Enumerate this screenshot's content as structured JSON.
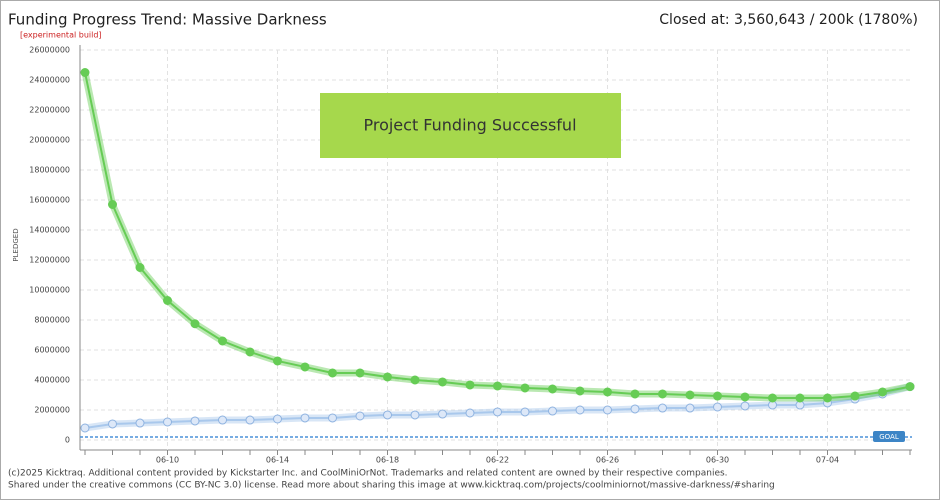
{
  "chart_data": {
    "type": "line",
    "title": "Funding Progress Trend: Massive Darkness",
    "subtitle": "[experimental build]",
    "closed_at": "Closed at:  3,560,643 / 200k (1780%)",
    "y_label": "PLEDGED",
    "banner": "Project Funding Successful",
    "goal_label": "GOAL",
    "goal": 200000,
    "footer": [
      "(c)2025 Kicktraq. Additional content provided by Kickstarter Inc. and CoolMiniOrNot. Trademarks and related content are owned by their respective companies.",
      "Shared under the creative commons (CC BY-NC 3.0) license. Read more about sharing this image at www.kicktraq.com/projects/coolminiornot/massive-darkness/#sharing"
    ],
    "categories": [
      null,
      null,
      null,
      "06-10",
      null,
      null,
      null,
      "06-14",
      null,
      null,
      null,
      "06-18",
      null,
      null,
      null,
      "06-22",
      null,
      null,
      null,
      "06-26",
      null,
      null,
      null,
      "06-30",
      null,
      null,
      null,
      "07-04",
      null,
      null,
      null
    ],
    "series": [
      {
        "color": "#66cc55",
        "values": [
          24500000,
          15700000,
          11500000,
          9300000,
          7750000,
          6600000,
          5870000,
          5270000,
          4870000,
          4470000,
          4470000,
          4200000,
          4000000,
          3870000,
          3670000,
          3600000,
          3470000,
          3400000,
          3270000,
          3200000,
          3070000,
          3070000,
          3000000,
          2930000,
          2870000,
          2800000,
          2800000,
          2800000,
          2930000,
          3200000,
          3560643
        ]
      },
      {
        "color": "#a9c8ec",
        "values": [
          800000,
          1070000,
          1130000,
          1200000,
          1270000,
          1330000,
          1330000,
          1400000,
          1470000,
          1470000,
          1600000,
          1670000,
          1670000,
          1730000,
          1800000,
          1870000,
          1870000,
          1930000,
          2000000,
          2000000,
          2070000,
          2130000,
          2130000,
          2200000,
          2270000,
          2330000,
          2330000,
          2470000,
          2730000,
          3070000,
          3560643
        ]
      }
    ],
    "ylim": [
      0,
      26000000
    ],
    "yticks": [
      0,
      2000000,
      4000000,
      6000000,
      8000000,
      10000000,
      12000000,
      14000000,
      16000000,
      18000000,
      20000000,
      22000000,
      24000000,
      26000000
    ],
    "grid": true
  }
}
